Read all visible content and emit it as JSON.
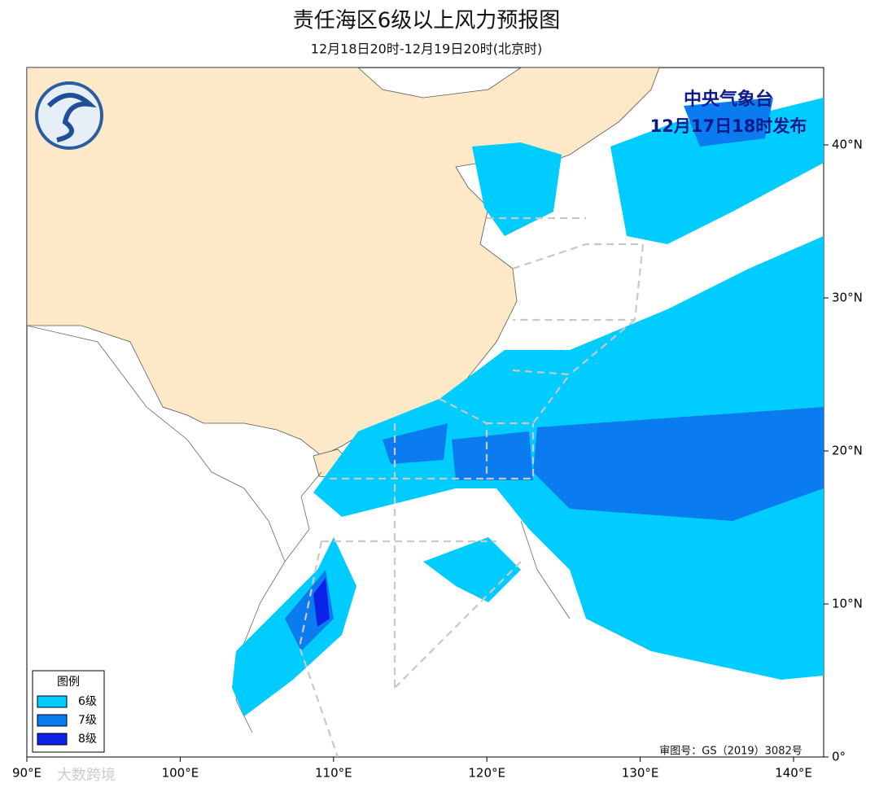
{
  "header": {
    "title": "责任海区6级以上风力预报图",
    "subtitle": "12月18日20时-12月19日20时(北京时)"
  },
  "issuer": {
    "name": "中央气象台",
    "time": "12月17日18时发布"
  },
  "axes": {
    "longitude": [
      "90°E",
      "100°E",
      "110°E",
      "120°E",
      "130°E",
      "140°E"
    ],
    "latitude": [
      "0°",
      "10°N",
      "20°N",
      "30°N",
      "40°N"
    ]
  },
  "legend": {
    "title": "图例",
    "items": [
      {
        "label": "6级",
        "color": "#00ccff"
      },
      {
        "label": "7级",
        "color": "#0a7cf0"
      },
      {
        "label": "8级",
        "color": "#0b23e8"
      }
    ]
  },
  "footer": {
    "review_number": "审图号：GS（2019）3082号",
    "watermark": "大数跨境"
  }
}
